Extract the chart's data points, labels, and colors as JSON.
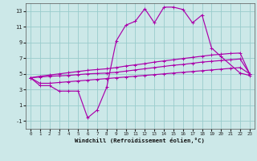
{
  "x": [
    0,
    1,
    2,
    3,
    4,
    5,
    6,
    7,
    8,
    9,
    10,
    11,
    12,
    13,
    14,
    15,
    16,
    17,
    18,
    19,
    20,
    21,
    22,
    23
  ],
  "line1": [
    4.5,
    3.5,
    3.5,
    2.8,
    2.8,
    2.8,
    -0.6,
    0.4,
    3.3,
    9.2,
    11.2,
    11.7,
    13.3,
    11.5,
    13.5,
    13.5,
    13.2,
    11.5,
    12.5,
    8.3,
    7.2,
    null,
    5.1,
    4.8
  ],
  "line2": [
    4.5,
    4.7,
    4.85,
    5.0,
    5.15,
    5.3,
    5.45,
    5.55,
    5.65,
    5.8,
    6.0,
    6.15,
    6.3,
    6.5,
    6.65,
    6.8,
    6.95,
    7.1,
    7.25,
    7.4,
    7.5,
    7.6,
    7.65,
    5.0
  ],
  "line3": [
    4.5,
    4.6,
    4.7,
    4.75,
    4.8,
    4.9,
    5.0,
    5.05,
    5.1,
    5.2,
    5.35,
    5.5,
    5.65,
    5.8,
    5.95,
    6.1,
    6.2,
    6.35,
    6.5,
    6.6,
    6.7,
    6.8,
    6.9,
    5.0
  ],
  "line4": [
    4.5,
    3.8,
    3.8,
    3.9,
    4.0,
    4.1,
    4.2,
    4.3,
    4.4,
    4.5,
    4.6,
    4.7,
    4.8,
    4.9,
    5.0,
    5.1,
    5.2,
    5.3,
    5.4,
    5.5,
    5.6,
    5.7,
    5.8,
    5.0
  ],
  "color": "#aa00aa",
  "bg_color": "#cce8e8",
  "grid_color": "#99cccc",
  "xlabel": "Windchill (Refroidissement éolien,°C)",
  "ylim": [
    -2,
    14
  ],
  "xlim": [
    -0.5,
    23.5
  ],
  "yticks": [
    -1,
    1,
    3,
    5,
    7,
    9,
    11,
    13
  ],
  "xticks": [
    0,
    1,
    2,
    3,
    4,
    5,
    6,
    7,
    8,
    9,
    10,
    11,
    12,
    13,
    14,
    15,
    16,
    17,
    18,
    19,
    20,
    21,
    22,
    23
  ]
}
